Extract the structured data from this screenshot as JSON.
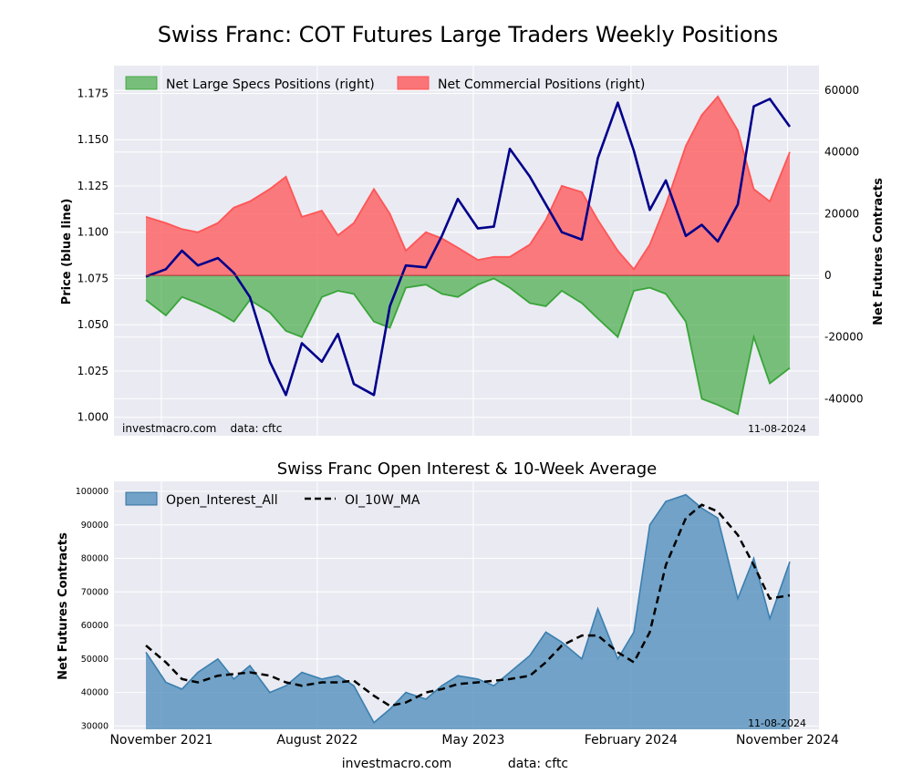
{
  "page": {
    "title": "Swiss Franc: COT Futures Large Traders Weekly Positions",
    "footer_site": "investmacro.com",
    "footer_data": "data: cftc"
  },
  "chart_data": [
    {
      "type": "area",
      "title": "Swiss Franc: COT Futures Large Traders Weekly Positions",
      "ylabel_left": "Price (blue line)",
      "ylabel_right": "Net Futures Contracts",
      "ylim_left": [
        0.99,
        1.19
      ],
      "ylim_right": [
        -52000,
        68000
      ],
      "yticks_left": [
        "1.000",
        "1.025",
        "1.050",
        "1.075",
        "1.100",
        "1.125",
        "1.150",
        "1.175"
      ],
      "yticks_right": [
        "-40000",
        "-20000",
        "0",
        "20000",
        "40000",
        "60000"
      ],
      "legend_position": "top-left",
      "grid": true,
      "watermark_left": "investmacro.com    data: cftc",
      "date_label": "11-08-2024",
      "x_range": [
        "2021-10-05",
        "2024-11-05"
      ],
      "colors": {
        "large_specs": "#2ca02c",
        "commercial": "#ff4d4d",
        "price": "#00008b"
      },
      "series": [
        {
          "name": "Net Large Specs Positions (right)",
          "role": "large_specs",
          "x": [
            "2021-10-05",
            "2021-11-09",
            "2021-12-07",
            "2022-01-04",
            "2022-02-08",
            "2022-03-08",
            "2022-04-05",
            "2022-05-10",
            "2022-06-07",
            "2022-07-05",
            "2022-08-09",
            "2022-09-06",
            "2022-10-04",
            "2022-11-08",
            "2022-12-06",
            "2023-01-03",
            "2023-02-07",
            "2023-03-07",
            "2023-04-04",
            "2023-05-09",
            "2023-06-06",
            "2023-07-04",
            "2023-08-08",
            "2023-09-05",
            "2023-10-03",
            "2023-11-07",
            "2023-12-05",
            "2024-01-09",
            "2024-02-06",
            "2024-03-05",
            "2024-04-02",
            "2024-05-07",
            "2024-06-04",
            "2024-07-02",
            "2024-08-06",
            "2024-09-03",
            "2024-10-01",
            "2024-11-05"
          ],
          "values": [
            -8000,
            -13000,
            -7000,
            -9000,
            -12000,
            -15000,
            -8000,
            -12000,
            -18000,
            -20000,
            -7000,
            -5000,
            -6000,
            -15000,
            -17000,
            -4000,
            -3000,
            -6000,
            -7000,
            -3000,
            -1000,
            -4000,
            -9000,
            -10000,
            -5000,
            -9000,
            -14000,
            -20000,
            -5000,
            -4000,
            -6000,
            -15000,
            -40000,
            -42000,
            -45000,
            -20000,
            -35000,
            -30000
          ]
        },
        {
          "name": "Net Commercial Positions (right)",
          "role": "commercial",
          "x": [
            "2021-10-05",
            "2021-11-09",
            "2021-12-07",
            "2022-01-04",
            "2022-02-08",
            "2022-03-08",
            "2022-04-05",
            "2022-05-10",
            "2022-06-07",
            "2022-07-05",
            "2022-08-09",
            "2022-09-06",
            "2022-10-04",
            "2022-11-08",
            "2022-12-06",
            "2023-01-03",
            "2023-02-07",
            "2023-03-07",
            "2023-04-04",
            "2023-05-09",
            "2023-06-06",
            "2023-07-04",
            "2023-08-08",
            "2023-09-05",
            "2023-10-03",
            "2023-11-07",
            "2023-12-05",
            "2024-01-09",
            "2024-02-06",
            "2024-03-05",
            "2024-04-02",
            "2024-05-07",
            "2024-06-04",
            "2024-07-02",
            "2024-08-06",
            "2024-09-03",
            "2024-10-01",
            "2024-11-05"
          ],
          "values": [
            19000,
            17000,
            15000,
            14000,
            17000,
            22000,
            24000,
            28000,
            32000,
            19000,
            21000,
            13000,
            17000,
            28000,
            20000,
            8000,
            14000,
            12000,
            9000,
            5000,
            6000,
            6000,
            10000,
            18000,
            29000,
            27000,
            18000,
            8000,
            2000,
            10000,
            23000,
            42000,
            52000,
            58000,
            47000,
            28000,
            24000,
            40000
          ]
        },
        {
          "name": "Price (blue line)",
          "role": "price",
          "x": [
            "2021-10-05",
            "2021-11-09",
            "2021-12-07",
            "2022-01-04",
            "2022-02-08",
            "2022-03-08",
            "2022-04-05",
            "2022-05-10",
            "2022-06-07",
            "2022-07-05",
            "2022-08-09",
            "2022-09-06",
            "2022-10-04",
            "2022-11-08",
            "2022-12-06",
            "2023-01-03",
            "2023-02-07",
            "2023-03-07",
            "2023-04-04",
            "2023-05-09",
            "2023-06-06",
            "2023-07-04",
            "2023-08-08",
            "2023-09-05",
            "2023-10-03",
            "2023-11-07",
            "2023-12-05",
            "2024-01-09",
            "2024-02-06",
            "2024-03-05",
            "2024-04-02",
            "2024-05-07",
            "2024-06-04",
            "2024-07-02",
            "2024-08-06",
            "2024-09-03",
            "2024-10-01",
            "2024-11-05"
          ],
          "values": [
            1.076,
            1.08,
            1.09,
            1.082,
            1.086,
            1.078,
            1.065,
            1.03,
            1.012,
            1.04,
            1.03,
            1.045,
            1.018,
            1.012,
            1.06,
            1.082,
            1.081,
            1.098,
            1.118,
            1.102,
            1.103,
            1.145,
            1.13,
            1.115,
            1.1,
            1.096,
            1.14,
            1.17,
            1.144,
            1.112,
            1.128,
            1.098,
            1.104,
            1.095,
            1.115,
            1.168,
            1.172,
            1.157
          ]
        }
      ]
    },
    {
      "type": "area",
      "title": "Swiss Franc Open Interest & 10-Week Average",
      "ylabel": "Net Futures Contracts",
      "ylim": [
        29000,
        103000
      ],
      "yticks": [
        "30000",
        "40000",
        "50000",
        "60000",
        "70000",
        "80000",
        "90000",
        "100000"
      ],
      "xticks": [
        "November 2021",
        "August 2022",
        "May 2023",
        "February 2024",
        "November 2024"
      ],
      "legend_position": "top-left",
      "grid": true,
      "date_label": "11-08-2024",
      "colors": {
        "open_interest": "#4a8ab8",
        "ma": "#000000"
      },
      "series": [
        {
          "name": "Open_Interest_All",
          "role": "open_interest",
          "x": [
            "2021-10-05",
            "2021-11-09",
            "2021-12-07",
            "2022-01-04",
            "2022-02-08",
            "2022-03-08",
            "2022-04-05",
            "2022-05-10",
            "2022-06-07",
            "2022-07-05",
            "2022-08-09",
            "2022-09-06",
            "2022-10-04",
            "2022-11-08",
            "2022-12-06",
            "2023-01-03",
            "2023-02-07",
            "2023-03-07",
            "2023-04-04",
            "2023-05-09",
            "2023-06-06",
            "2023-07-04",
            "2023-08-08",
            "2023-09-05",
            "2023-10-03",
            "2023-11-07",
            "2023-12-05",
            "2024-01-09",
            "2024-02-06",
            "2024-03-05",
            "2024-04-02",
            "2024-05-07",
            "2024-06-04",
            "2024-07-02",
            "2024-08-06",
            "2024-09-03",
            "2024-10-01",
            "2024-11-05"
          ],
          "values": [
            52000,
            43000,
            41000,
            46000,
            50000,
            44000,
            48000,
            40000,
            42000,
            46000,
            44000,
            45000,
            42000,
            31000,
            35000,
            40000,
            38000,
            42000,
            45000,
            44000,
            42000,
            46000,
            51000,
            58000,
            55000,
            50000,
            65000,
            50000,
            58000,
            90000,
            97000,
            99000,
            95000,
            92000,
            68000,
            80000,
            62000,
            79000
          ]
        },
        {
          "name": "OI_10W_MA",
          "role": "ma",
          "x": [
            "2021-10-05",
            "2021-11-09",
            "2021-12-07",
            "2022-01-04",
            "2022-02-08",
            "2022-03-08",
            "2022-04-05",
            "2022-05-10",
            "2022-06-07",
            "2022-07-05",
            "2022-08-09",
            "2022-09-06",
            "2022-10-04",
            "2022-11-08",
            "2022-12-06",
            "2023-01-03",
            "2023-02-07",
            "2023-03-07",
            "2023-04-04",
            "2023-05-09",
            "2023-06-06",
            "2023-07-04",
            "2023-08-08",
            "2023-09-05",
            "2023-10-03",
            "2023-11-07",
            "2023-12-05",
            "2024-01-09",
            "2024-02-06",
            "2024-03-05",
            "2024-04-02",
            "2024-05-07",
            "2024-06-04",
            "2024-07-02",
            "2024-08-06",
            "2024-09-03",
            "2024-10-01",
            "2024-11-05"
          ],
          "values": [
            54000,
            49000,
            44000,
            43000,
            45000,
            45500,
            46000,
            45000,
            43000,
            42000,
            43000,
            43000,
            43500,
            39000,
            36000,
            37000,
            40000,
            41000,
            42500,
            43000,
            43500,
            44000,
            45000,
            49000,
            54000,
            57000,
            57000,
            52000,
            49000,
            58000,
            78000,
            92000,
            96000,
            94000,
            87000,
            78000,
            68000,
            69000
          ]
        }
      ]
    }
  ]
}
